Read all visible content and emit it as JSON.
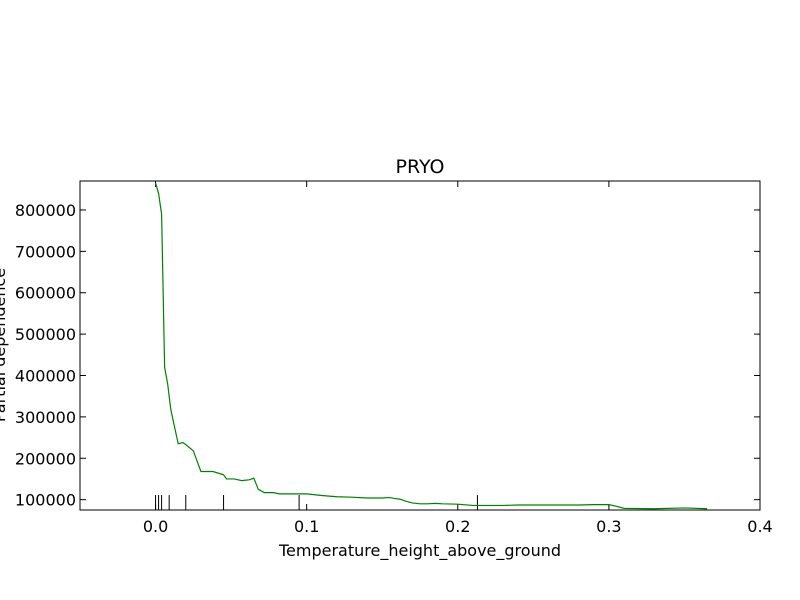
{
  "chart_data": {
    "type": "line",
    "title": "PRYO",
    "xlabel": "Temperature_height_above_ground",
    "ylabel": "Partial dependence",
    "xlim": [
      -0.05,
      0.4
    ],
    "ylim": [
      75000,
      870000
    ],
    "grid": false,
    "legend": "none",
    "x_ticks": [
      {
        "value": 0.0,
        "label": "0.0"
      },
      {
        "value": 0.1,
        "label": "0.1"
      },
      {
        "value": 0.2,
        "label": "0.2"
      },
      {
        "value": 0.3,
        "label": "0.3"
      },
      {
        "value": 0.4,
        "label": "0.4"
      }
    ],
    "y_ticks": [
      {
        "value": 100000,
        "label": "100000"
      },
      {
        "value": 200000,
        "label": "200000"
      },
      {
        "value": 300000,
        "label": "300000"
      },
      {
        "value": 400000,
        "label": "400000"
      },
      {
        "value": 500000,
        "label": "500000"
      },
      {
        "value": 600000,
        "label": "600000"
      },
      {
        "value": 700000,
        "label": "700000"
      },
      {
        "value": 800000,
        "label": "800000"
      }
    ],
    "series": [
      {
        "color": "#008000",
        "x": [
          0.0,
          0.002,
          0.004,
          0.006,
          0.008,
          0.01,
          0.012,
          0.015,
          0.018,
          0.02,
          0.025,
          0.03,
          0.038,
          0.045,
          0.047,
          0.052,
          0.057,
          0.062,
          0.065,
          0.068,
          0.072,
          0.078,
          0.082,
          0.1,
          0.11,
          0.12,
          0.13,
          0.14,
          0.15,
          0.155,
          0.158,
          0.162,
          0.165,
          0.17,
          0.175,
          0.18,
          0.185,
          0.19,
          0.2,
          0.21,
          0.22,
          0.23,
          0.24,
          0.25,
          0.26,
          0.27,
          0.28,
          0.29,
          0.3,
          0.305,
          0.31,
          0.33,
          0.35,
          0.365
        ],
        "y": [
          865000,
          840000,
          790000,
          420000,
          380000,
          320000,
          285000,
          235000,
          238000,
          233000,
          218000,
          168000,
          168000,
          160000,
          150000,
          150000,
          146000,
          148000,
          152000,
          125000,
          117000,
          117000,
          114000,
          114000,
          110000,
          107000,
          106000,
          104000,
          104000,
          105000,
          103000,
          101000,
          97000,
          92000,
          90000,
          90000,
          91000,
          90000,
          89000,
          86000,
          86000,
          86000,
          87000,
          87000,
          87000,
          87000,
          87000,
          88000,
          88000,
          84000,
          79000,
          78000,
          80000,
          78000
        ]
      }
    ],
    "rug": [
      0.0,
      0.002,
      0.004,
      0.009,
      0.02,
      0.045,
      0.095,
      0.213
    ]
  }
}
